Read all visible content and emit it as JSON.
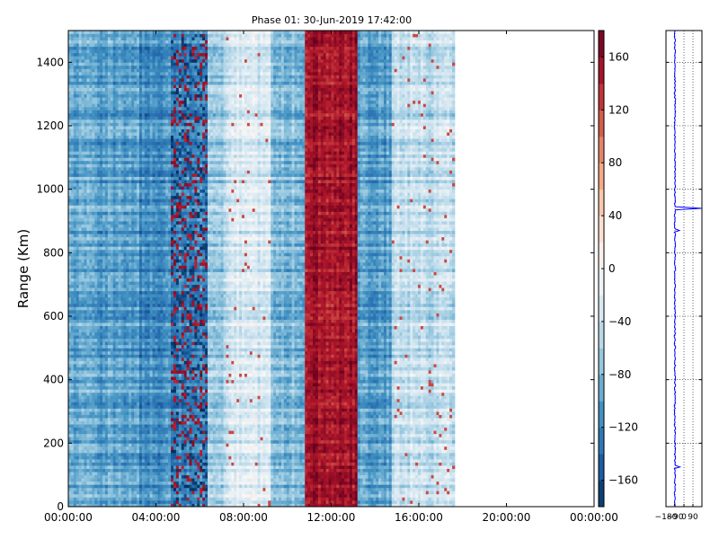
{
  "chart_data": [
    {
      "type": "heatmap",
      "title": "Phase 01: 30-Jun-2019 17:42:00",
      "xlabel": "",
      "ylabel": "Range (Km)",
      "x_ticks": [
        "00:00:00",
        "04:00:00",
        "08:00:00",
        "12:00:00",
        "16:00:00",
        "20:00:00",
        "00:00:00"
      ],
      "x_tick_hours": [
        0,
        4,
        8,
        12,
        16,
        20,
        24
      ],
      "y_ticks": [
        0,
        200,
        400,
        600,
        800,
        1000,
        1200,
        1400
      ],
      "xlim_hours": [
        0,
        24
      ],
      "ylim": [
        0,
        1500
      ],
      "data_end_hours": 17.7,
      "colormap": "RdBu_r",
      "color_range": [
        -180,
        180
      ],
      "colorbar_ticks": [
        160,
        120,
        80,
        40,
        0,
        -40,
        -80,
        -120,
        -160
      ],
      "colorbar_tick_values": [
        160,
        120,
        80,
        40,
        0,
        -40,
        -80,
        -120,
        -160
      ],
      "phase_profile_by_hour": [
        {
          "from": 0.0,
          "to": 1.2,
          "mean": -95
        },
        {
          "from": 1.2,
          "to": 3.2,
          "mean": -100
        },
        {
          "from": 3.2,
          "to": 4.7,
          "mean": -115
        },
        {
          "from": 4.7,
          "to": 6.4,
          "mean": -120,
          "noise": "high"
        },
        {
          "from": 6.4,
          "to": 7.2,
          "mean": -60
        },
        {
          "from": 7.2,
          "to": 9.2,
          "mean": -30
        },
        {
          "from": 9.2,
          "to": 10.8,
          "mean": -80
        },
        {
          "from": 10.8,
          "to": 13.2,
          "mean": 150
        },
        {
          "from": 13.2,
          "to": 14.8,
          "mean": -100
        },
        {
          "from": 14.8,
          "to": 17.7,
          "mean": -45
        }
      ]
    },
    {
      "type": "line",
      "description_of_axes": "phase profile vs range",
      "x_ticks": [
        "-180",
        "-90",
        "0",
        "90"
      ],
      "x_tick_values": [
        -180,
        -90,
        0,
        90
      ],
      "xlim": [
        -180,
        180
      ],
      "ylim": [
        0,
        1500
      ],
      "grid": true,
      "series_color": "#0000ff",
      "baseline_value": -90,
      "spikes": [
        {
          "range": 940,
          "value": 175
        },
        {
          "range": 870,
          "value": -45
        },
        {
          "range": 125,
          "value": -40
        }
      ]
    }
  ]
}
